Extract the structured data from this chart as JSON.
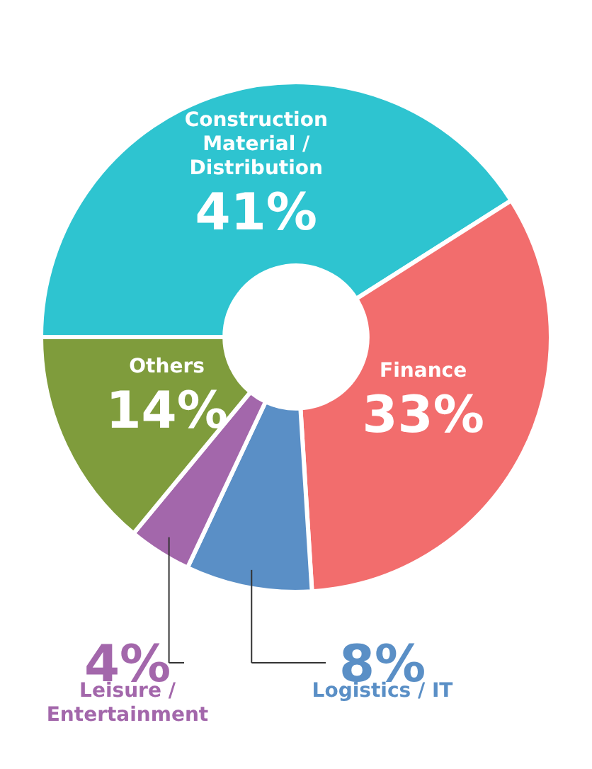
{
  "chart_data": {
    "type": "donut",
    "categories": [
      "Construction Material / Distribution",
      "Finance",
      "Logistics / IT",
      "Leisure / Entertainment",
      "Others"
    ],
    "values": [
      41,
      33,
      8,
      4,
      14
    ],
    "value_labels": [
      "41%",
      "33%",
      "8%",
      "4%",
      "14%"
    ],
    "colors": [
      "#2ec4d0",
      "#f26d6d",
      "#5a8fc6",
      "#a367ab",
      "#7f9c3c"
    ]
  }
}
